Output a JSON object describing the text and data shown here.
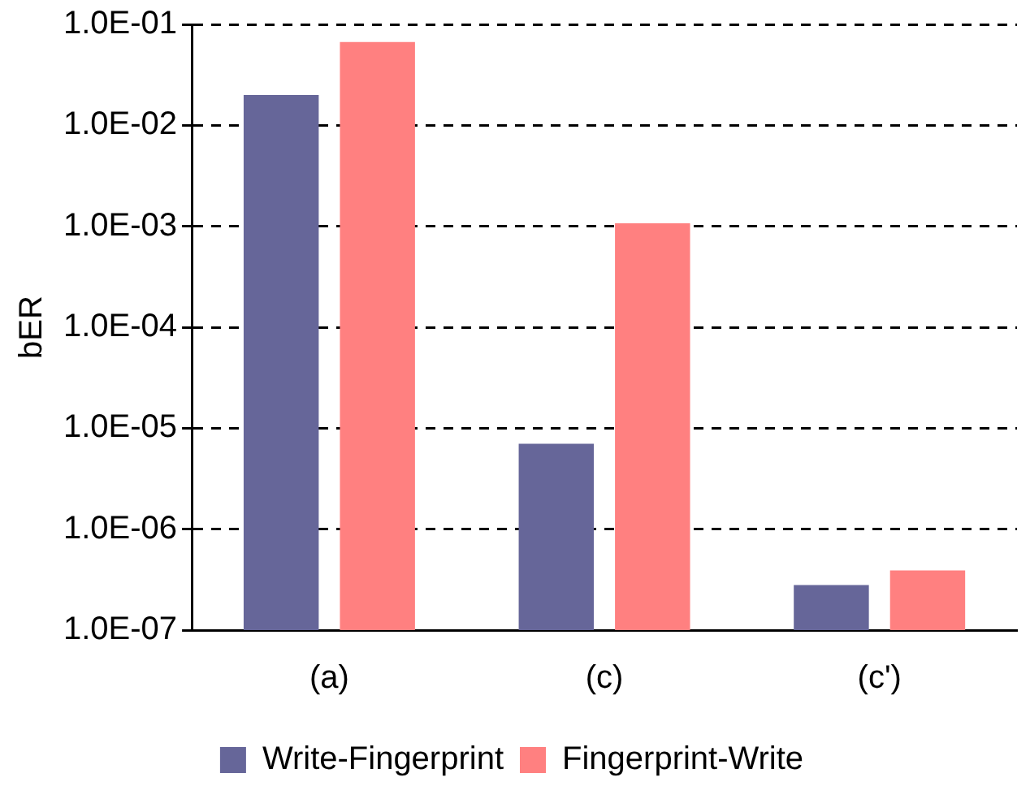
{
  "chart_data": {
    "type": "bar",
    "ylabel": "bER",
    "categories": [
      "(a)",
      "(c)",
      "(c')"
    ],
    "series": [
      {
        "name": "Write-Fingerprint",
        "color": "#666699",
        "values": [
          0.02,
          7e-06,
          2.8e-07
        ]
      },
      {
        "name": "Fingerprint-Write",
        "color": "#ff8080",
        "values": [
          0.067,
          0.00107,
          3.9e-07
        ]
      }
    ],
    "log": true,
    "ylim": [
      1e-07,
      0.1
    ],
    "yticks": [
      {
        "value": 1e-07,
        "label": "1.0E-07"
      },
      {
        "value": 1e-06,
        "label": "1.0E-06"
      },
      {
        "value": 1e-05,
        "label": "1.0E-05"
      },
      {
        "value": 0.0001,
        "label": "1.0E-04"
      },
      {
        "value": 0.001,
        "label": "1.0E-03"
      },
      {
        "value": 0.01,
        "label": "1.0E-02"
      },
      {
        "value": 0.1,
        "label": "1.0E-01"
      }
    ],
    "grid": "y",
    "legend": "bottom"
  }
}
